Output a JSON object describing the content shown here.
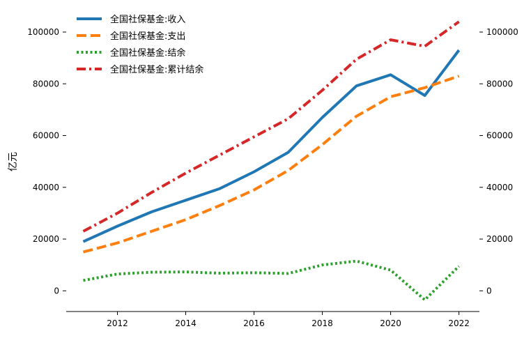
{
  "chart_data": {
    "type": "line",
    "title": "",
    "xlabel": "",
    "ylabel": "亿元",
    "x": [
      2011,
      2012,
      2013,
      2014,
      2015,
      2016,
      2017,
      2018,
      2019,
      2020,
      2021,
      2022
    ],
    "xticks": [
      2012,
      2014,
      2016,
      2018,
      2020,
      2022
    ],
    "xlim": [
      2010.5,
      2022.6
    ],
    "ylim": [
      -8000,
      107000
    ],
    "yticks": [
      0,
      20000,
      40000,
      60000,
      80000,
      100000
    ],
    "right_yticks": [
      0,
      20000,
      40000,
      60000,
      80000,
      100000
    ],
    "grid": false,
    "legend": "top-left",
    "series": [
      {
        "name": "全国社保基金:收入",
        "color": "#1f77b4",
        "style": "solid",
        "values": [
          19000,
          25000,
          30500,
          35000,
          39500,
          46000,
          53500,
          67000,
          79200,
          83500,
          75500,
          93000
        ]
      },
      {
        "name": "全国社保基金:支出",
        "color": "#ff7f0e",
        "style": "dashed",
        "values": [
          15000,
          18500,
          23000,
          27500,
          33000,
          39000,
          46500,
          56500,
          67500,
          75000,
          78500,
          83000
        ]
      },
      {
        "name": "全国社保基金:结余",
        "color": "#2ca02c",
        "style": "dotted",
        "values": [
          4000,
          6500,
          7200,
          7300,
          6800,
          7000,
          6700,
          10000,
          11500,
          8000,
          -3500,
          9500
        ]
      },
      {
        "name": "全国社保基金:累计结余",
        "color": "#d62728",
        "style": "dashdot",
        "values": [
          23000,
          30000,
          38000,
          45500,
          52500,
          59500,
          66500,
          77500,
          89500,
          97000,
          94500,
          104000
        ]
      }
    ]
  }
}
